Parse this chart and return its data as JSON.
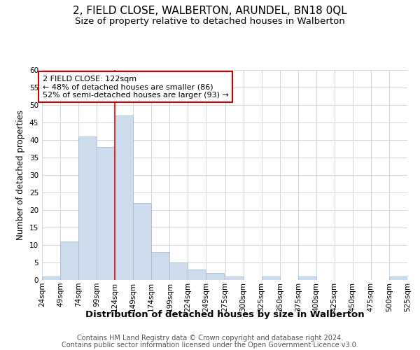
{
  "title": "2, FIELD CLOSE, WALBERTON, ARUNDEL, BN18 0QL",
  "subtitle": "Size of property relative to detached houses in Walberton",
  "xlabel": "Distribution of detached houses by size in Walberton",
  "ylabel": "Number of detached properties",
  "bin_edges": [
    24,
    49,
    74,
    99,
    124,
    149,
    174,
    199,
    224,
    249,
    275,
    300,
    325,
    350,
    375,
    400,
    425,
    450,
    475,
    500,
    525
  ],
  "bar_heights": [
    1,
    11,
    41,
    38,
    47,
    22,
    8,
    5,
    3,
    2,
    1,
    0,
    1,
    0,
    1,
    0,
    0,
    0,
    0,
    1
  ],
  "bar_color": "#ccdcec",
  "bar_edge_color": "#aabccc",
  "red_line_x": 124,
  "ylim": [
    0,
    60
  ],
  "yticks": [
    0,
    5,
    10,
    15,
    20,
    25,
    30,
    35,
    40,
    45,
    50,
    55,
    60
  ],
  "xtick_labels": [
    "24sqm",
    "49sqm",
    "74sqm",
    "99sqm",
    "124sqm",
    "149sqm",
    "174sqm",
    "199sqm",
    "224sqm",
    "249sqm",
    "275sqm",
    "300sqm",
    "325sqm",
    "350sqm",
    "375sqm",
    "400sqm",
    "425sqm",
    "450sqm",
    "475sqm",
    "500sqm",
    "525sqm"
  ],
  "annotation_title": "2 FIELD CLOSE: 122sqm",
  "annotation_line1": "← 48% of detached houses are smaller (86)",
  "annotation_line2": "52% of semi-detached houses are larger (93) →",
  "annotation_box_color": "#ffffff",
  "annotation_box_edge": "#cc0000",
  "footer_line1": "Contains HM Land Registry data © Crown copyright and database right 2024.",
  "footer_line2": "Contains public sector information licensed under the Open Government Licence v3.0.",
  "title_fontsize": 11,
  "subtitle_fontsize": 9.5,
  "xlabel_fontsize": 9.5,
  "ylabel_fontsize": 8.5,
  "tick_fontsize": 7.5,
  "annotation_fontsize": 8,
  "footer_fontsize": 7,
  "background_color": "#ffffff",
  "grid_color": "#d0d8e0"
}
